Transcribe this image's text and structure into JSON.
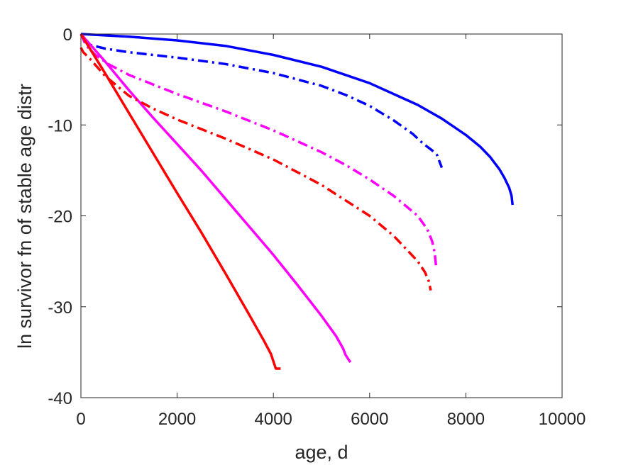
{
  "chart_data": {
    "type": "line",
    "title": "",
    "xlabel": "age, d",
    "ylabel": "ln survivor fn of stable age distr",
    "xlim": [
      0,
      10000
    ],
    "ylim": [
      -40,
      0
    ],
    "xticks": [
      0,
      2000,
      4000,
      6000,
      8000,
      10000
    ],
    "yticks": [
      -40,
      -30,
      -20,
      -10,
      0
    ],
    "xtick_labels": [
      "0",
      "2000",
      "4000",
      "6000",
      "8000",
      "10000"
    ],
    "ytick_labels": [
      "-40",
      "-30",
      "-20",
      "-10",
      "0"
    ],
    "grid": false,
    "legend": "none",
    "series": [
      {
        "color": "#0000ff",
        "style": "solid",
        "x": [
          0,
          1000,
          2000,
          3000,
          4000,
          5000,
          6000,
          7000,
          7500,
          8000,
          8300,
          8500,
          8700,
          8800,
          8900,
          8950,
          8970
        ],
        "y": [
          0,
          -0.3,
          -0.7,
          -1.3,
          -2.3,
          -3.6,
          -5.4,
          -7.8,
          -9.3,
          -11.1,
          -12.4,
          -13.5,
          -14.9,
          -15.8,
          -16.9,
          -17.8,
          -18.8
        ]
      },
      {
        "color": "#0000ff",
        "style": "dashdot",
        "x": [
          0,
          100,
          200,
          500,
          1000,
          2000,
          3000,
          4000,
          5000,
          5500,
          6000,
          6500,
          6900,
          7100,
          7300,
          7400,
          7450,
          7500
        ],
        "y": [
          0,
          -0.8,
          -1.2,
          -1.6,
          -2.0,
          -2.6,
          -3.3,
          -4.3,
          -5.7,
          -6.7,
          -7.9,
          -9.5,
          -11.0,
          -12.0,
          -12.8,
          -13.3,
          -14.0,
          -14.7
        ]
      },
      {
        "color": "#ff00ff",
        "style": "solid",
        "x": [
          0,
          500,
          1000,
          1500,
          2000,
          2500,
          3000,
          3500,
          4000,
          4500,
          5000,
          5300,
          5450,
          5500,
          5550,
          5600
        ],
        "y": [
          0,
          -3.0,
          -6.2,
          -9.2,
          -12.1,
          -15.0,
          -18.1,
          -21.2,
          -24.3,
          -27.6,
          -31.0,
          -33.2,
          -34.6,
          -35.3,
          -35.7,
          -36.1
        ]
      },
      {
        "color": "#ff00ff",
        "style": "dashdot",
        "x": [
          0,
          100,
          300,
          600,
          1000,
          2000,
          3000,
          4000,
          5000,
          5500,
          6000,
          6500,
          7000,
          7200,
          7300,
          7350,
          7380
        ],
        "y": [
          0,
          -1.2,
          -2.3,
          -3.4,
          -4.5,
          -6.6,
          -8.5,
          -10.6,
          -13.0,
          -14.4,
          -16.0,
          -17.8,
          -20.0,
          -21.5,
          -22.8,
          -24.0,
          -25.5
        ]
      },
      {
        "color": "#ff0000",
        "style": "solid",
        "x": [
          0,
          500,
          1000,
          1500,
          2000,
          2500,
          3000,
          3500,
          3800,
          3950,
          4000,
          4050,
          4150
        ],
        "y": [
          0,
          -4.3,
          -8.7,
          -13.1,
          -17.5,
          -21.8,
          -26.3,
          -30.9,
          -33.7,
          -35.2,
          -36.0,
          -36.8,
          -36.8
        ]
      },
      {
        "color": "#ff0000",
        "style": "dashdot",
        "x": [
          0,
          50,
          200,
          500,
          1000,
          1500,
          2000,
          3000,
          4000,
          5000,
          6000,
          6500,
          7000,
          7150,
          7230,
          7270
        ],
        "y": [
          -1.5,
          -2.0,
          -2.8,
          -4.6,
          -6.8,
          -8.2,
          -9.4,
          -11.5,
          -13.8,
          -16.6,
          -20.0,
          -22.2,
          -25.0,
          -26.2,
          -27.2,
          -28.2
        ]
      }
    ]
  }
}
